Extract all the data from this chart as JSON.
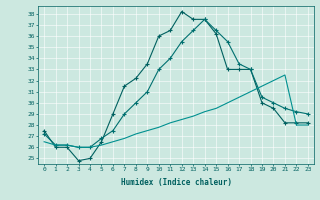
{
  "xlabel": "Humidex (Indice chaleur)",
  "xlim": [
    -0.5,
    23.5
  ],
  "ylim": [
    24.5,
    38.7
  ],
  "yticks": [
    25,
    26,
    27,
    28,
    29,
    30,
    31,
    32,
    33,
    34,
    35,
    36,
    37,
    38
  ],
  "xticks": [
    0,
    1,
    2,
    3,
    4,
    5,
    6,
    7,
    8,
    9,
    10,
    11,
    12,
    13,
    14,
    15,
    16,
    17,
    18,
    19,
    20,
    21,
    22,
    23
  ],
  "bg_color": "#cce8e0",
  "line_color1": "#006060",
  "line_color2": "#007070",
  "line_color3": "#009090",
  "line1_x": [
    0,
    1,
    2,
    3,
    4,
    5,
    6,
    7,
    8,
    9,
    10,
    11,
    12,
    13,
    14,
    15,
    16,
    17,
    18,
    19,
    20,
    21,
    22,
    23
  ],
  "line1_y": [
    27.5,
    26.0,
    26.0,
    24.8,
    25.0,
    26.5,
    29.0,
    31.5,
    32.2,
    33.5,
    36.0,
    36.5,
    38.2,
    37.5,
    37.5,
    36.2,
    33.0,
    33.0,
    33.0,
    30.0,
    29.5,
    28.2,
    28.2,
    28.2
  ],
  "line2_x": [
    0,
    1,
    2,
    3,
    4,
    5,
    6,
    7,
    8,
    9,
    10,
    11,
    12,
    13,
    14,
    15,
    16,
    17,
    18,
    19,
    20,
    21,
    22,
    23
  ],
  "line2_y": [
    27.2,
    26.2,
    26.2,
    26.0,
    26.0,
    26.8,
    27.5,
    29.0,
    30.0,
    31.0,
    33.0,
    34.0,
    35.5,
    36.5,
    37.5,
    36.5,
    35.5,
    33.5,
    33.0,
    30.5,
    30.0,
    29.5,
    29.2,
    29.0
  ],
  "line3_x": [
    0,
    1,
    2,
    3,
    4,
    5,
    6,
    7,
    8,
    9,
    10,
    11,
    12,
    13,
    14,
    15,
    16,
    17,
    18,
    19,
    20,
    21,
    22,
    23
  ],
  "line3_y": [
    26.5,
    26.2,
    26.2,
    26.0,
    26.0,
    26.2,
    26.5,
    26.8,
    27.2,
    27.5,
    27.8,
    28.2,
    28.5,
    28.8,
    29.2,
    29.5,
    30.0,
    30.5,
    31.0,
    31.5,
    32.0,
    32.5,
    28.0,
    28.0
  ]
}
